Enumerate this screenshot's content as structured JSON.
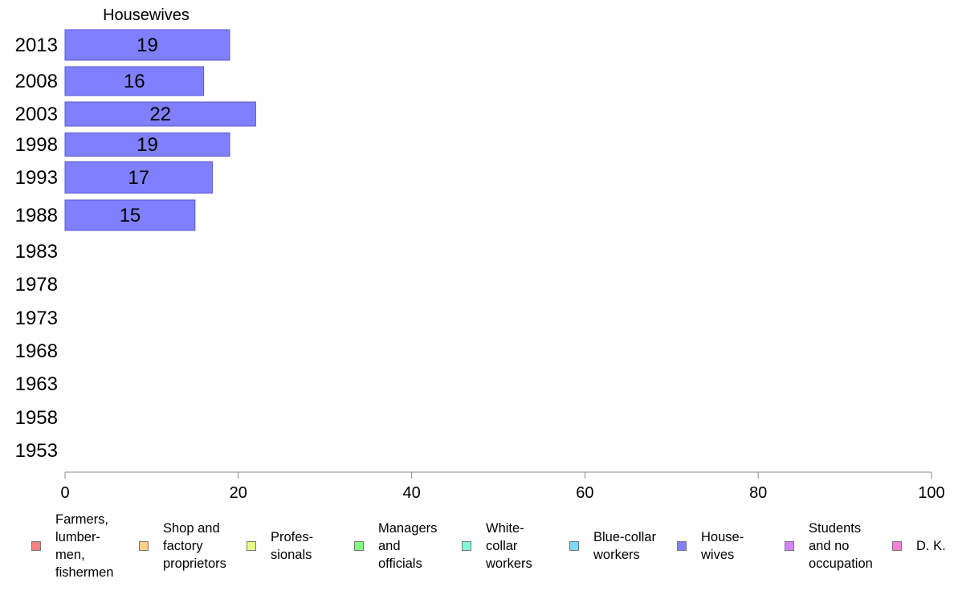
{
  "chart_data": {
    "type": "bar",
    "orientation": "horizontal",
    "title": "Housewives",
    "categories": [
      "2013",
      "2008",
      "2003",
      "1998",
      "1993",
      "1988",
      "1983",
      "1978",
      "1973",
      "1968",
      "1963",
      "1958",
      "1953"
    ],
    "series": [
      {
        "name": "House-\nwives",
        "values": [
          19,
          16,
          22,
          19,
          17,
          15,
          null,
          null,
          null,
          null,
          null,
          null,
          null
        ]
      }
    ],
    "xlim": [
      0,
      100
    ],
    "xticks": [
      0,
      20,
      40,
      60,
      80,
      100
    ],
    "grid": false,
    "legend_position": "bottom",
    "bar_color": "#8080ff",
    "bar_border": "#5a5acc",
    "legend": [
      {
        "label": "Farmers,\nlumber-\nmen,\nfishermen",
        "color": "#ff8080"
      },
      {
        "label": "Shop and\nfactory\nproprietors",
        "color": "#ffd080"
      },
      {
        "label": "Profes-\nsionals",
        "color": "#e8ff80"
      },
      {
        "label": "Managers\nand\nofficials",
        "color": "#80ff80"
      },
      {
        "label": "White-\ncollar\nworkers",
        "color": "#80ffd8"
      },
      {
        "label": "Blue-collar\nworkers",
        "color": "#80d8ff"
      },
      {
        "label": "House-\nwives",
        "color": "#8080ff"
      },
      {
        "label": "Students\nand no\noccupation",
        "color": "#d880ff"
      },
      {
        "label": "D. K.",
        "color": "#ff80d8"
      }
    ]
  }
}
